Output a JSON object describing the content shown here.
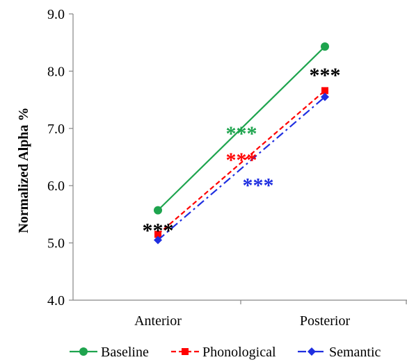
{
  "chart_data": {
    "type": "line",
    "categories": [
      "Anterior",
      "Posterior"
    ],
    "ylabel": "Normalized Alpha %",
    "ylim": [
      4.0,
      9.0
    ],
    "yticks": [
      "4.0",
      "5.0",
      "6.0",
      "7.0",
      "8.0",
      "9.0"
    ],
    "grid": false,
    "legend_position": "bottom",
    "series": [
      {
        "name": "Baseline",
        "values": [
          5.57,
          8.43
        ],
        "color": "#1ea44e",
        "marker": "circle",
        "dash": "solid"
      },
      {
        "name": "Phonological",
        "values": [
          5.15,
          7.66
        ],
        "color": "#ff0000",
        "marker": "square",
        "dash": "dash"
      },
      {
        "name": "Semantic",
        "values": [
          5.05,
          7.55
        ],
        "color": "#1f2fe0",
        "marker": "diamond",
        "dash": "dashdot"
      }
    ],
    "annotations": [
      {
        "text": "***",
        "color": "#1ea44e",
        "x": 0.5,
        "y": 6.96
      },
      {
        "text": "***",
        "color": "#ff0000",
        "x": 0.5,
        "y": 6.5
      },
      {
        "text": "***",
        "color": "#1f2fe0",
        "x": 0.6,
        "y": 6.06
      },
      {
        "text": "***",
        "color": "#000000",
        "x": 0.0,
        "y": 5.27
      },
      {
        "text": "***",
        "color": "#000000",
        "x": 1.0,
        "y": 7.98
      }
    ]
  }
}
